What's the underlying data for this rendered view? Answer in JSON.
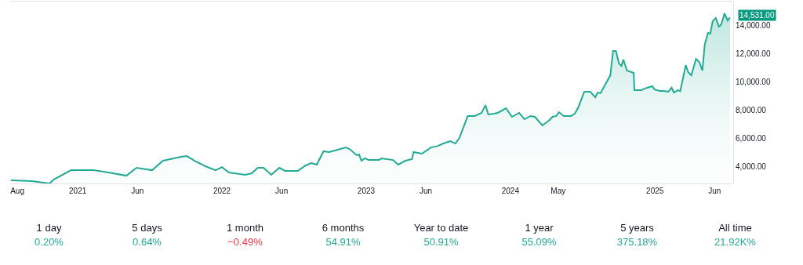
{
  "chart_data": [
    {
      "type": "area",
      "color": "#22ab94",
      "x": [
        "2020-07-16",
        "2020-09-07",
        "2020-10-22",
        "2020-11-01",
        "2020-12-15",
        "2021-02-10",
        "2021-03-20",
        "2021-05-04",
        "2021-05-30",
        "2021-07-08",
        "2021-08-05",
        "2021-09-19",
        "2021-10-04",
        "2021-10-24",
        "2021-11-20",
        "2021-12-16",
        "2022-01-01",
        "2022-01-19",
        "2022-03-01",
        "2022-03-17",
        "2022-04-02",
        "2022-04-16",
        "2022-05-06",
        "2022-05-26",
        "2022-06-10",
        "2022-07-12",
        "2022-08-01",
        "2022-08-15",
        "2022-08-29",
        "2022-09-15",
        "2022-09-29",
        "2022-10-21",
        "2022-11-10",
        "2022-11-20",
        "2022-12-08",
        "2022-12-14",
        "2022-12-20",
        "2022-12-29",
        "2023-01-07",
        "2023-02-03",
        "2023-02-09",
        "2023-03-10",
        "2023-03-23",
        "2023-04-10",
        "2023-04-27",
        "2023-05-01",
        "2023-05-22",
        "2023-06-14",
        "2023-07-02",
        "2023-07-15",
        "2023-08-02",
        "2023-08-15",
        "2023-08-25",
        "2023-09-15",
        "2023-10-03",
        "2023-10-20",
        "2023-10-30",
        "2023-11-06",
        "2023-11-20",
        "2023-11-30",
        "2023-12-21",
        "2024-01-05",
        "2024-01-23",
        "2024-02-06",
        "2024-02-21",
        "2024-03-03",
        "2024-03-22",
        "2024-04-07",
        "2024-04-17",
        "2024-04-26",
        "2024-05-03",
        "2024-05-15",
        "2024-06-02",
        "2024-06-12",
        "2024-06-21",
        "2024-07-06",
        "2024-07-21",
        "2024-08-03",
        "2024-08-09",
        "2024-08-16",
        "2024-09-10",
        "2024-09-17",
        "2024-09-24",
        "2024-10-02",
        "2024-10-08",
        "2024-10-13",
        "2024-10-22",
        "2024-11-08",
        "2024-11-10",
        "2024-11-27",
        "2024-12-12",
        "2024-12-25",
        "2024-12-31",
        "2025-01-13",
        "2025-01-23",
        "2025-02-04",
        "2025-02-12",
        "2025-02-18",
        "2025-02-28",
        "2025-03-06",
        "2025-03-20",
        "2025-03-26",
        "2025-04-03",
        "2025-04-15",
        "2025-04-23",
        "2025-05-01",
        "2025-05-07",
        "2025-05-15",
        "2025-05-21",
        "2025-05-27",
        "2025-06-04",
        "2025-06-12",
        "2025-06-18",
        "2025-06-26",
        "2025-07-04",
        "2025-07-10"
      ],
      "values": [
        3000,
        2950,
        2780,
        3050,
        3720,
        3720,
        3560,
        3330,
        3890,
        3720,
        4390,
        4670,
        4720,
        4390,
        4000,
        3720,
        3940,
        3560,
        3390,
        3500,
        3890,
        3890,
        3390,
        3890,
        3670,
        3670,
        4060,
        4220,
        4110,
        5060,
        5000,
        5170,
        5330,
        5220,
        4780,
        4830,
        4390,
        4560,
        4440,
        4440,
        4560,
        4440,
        4110,
        4390,
        4500,
        5000,
        4890,
        5330,
        5440,
        5610,
        5780,
        5610,
        6000,
        7560,
        7560,
        7780,
        8330,
        7670,
        7720,
        7780,
        8110,
        7500,
        7780,
        7330,
        7560,
        7500,
        6890,
        7220,
        7500,
        7560,
        7830,
        7560,
        7560,
        7720,
        8170,
        9280,
        9280,
        8890,
        9220,
        9170,
        10440,
        12170,
        12170,
        11280,
        11110,
        11560,
        10780,
        10610,
        9390,
        9390,
        9560,
        9670,
        9440,
        9330,
        9330,
        9280,
        9560,
        9220,
        9390,
        9330,
        11170,
        10670,
        10440,
        11610,
        11390,
        10780,
        12610,
        13440,
        13390,
        14280,
        14500,
        13890,
        14060,
        14830,
        14330,
        14531
      ],
      "xlim": [
        "2020-07-14",
        "2025-07-18"
      ],
      "xticks": [
        {
          "value": "2020-08-01",
          "label": "Aug"
        },
        {
          "value": "2021-01-01",
          "label": "2021"
        },
        {
          "value": "2021-06-01",
          "label": "Jun"
        },
        {
          "value": "2022-01-01",
          "label": "2022"
        },
        {
          "value": "2022-06-01",
          "label": "Jun"
        },
        {
          "value": "2023-01-01",
          "label": "2023"
        },
        {
          "value": "2023-06-01",
          "label": "Jun"
        },
        {
          "value": "2024-01-01",
          "label": "2024"
        },
        {
          "value": "2024-05-01",
          "label": "May"
        },
        {
          "value": "2025-01-01",
          "label": "2025"
        },
        {
          "value": "2025-06-01",
          "label": "Jun"
        }
      ],
      "ylim": [
        2780,
        15667
      ],
      "yticks": [
        {
          "value": 4000,
          "label": "4,000.00"
        },
        {
          "value": 6000,
          "label": "6,000.00"
        },
        {
          "value": 8000,
          "label": "8,000.00"
        },
        {
          "value": 10000,
          "label": "10,000.00"
        },
        {
          "value": 12000,
          "label": "12,000.00"
        },
        {
          "value": 14000,
          "label": "14,000.00"
        }
      ],
      "annotations": [
        {
          "text": "14,531.00",
          "x": "2025-07-10",
          "y": 14531
        }
      ],
      "grid": false,
      "legend": false
    },
    {
      "type": "other",
      "categories": [
        "1 day",
        "5 days",
        "1 month",
        "6 months",
        "Year to date",
        "1 year",
        "5 years",
        "All time"
      ],
      "values": [
        0.2,
        0.64,
        -0.49,
        54.91,
        50.91,
        55.09,
        375.18,
        21920
      ],
      "value_labels": [
        "0.20%",
        "0.64%",
        "−0.49%",
        "54.91%",
        "50.91%",
        "55.09%",
        "375.18%",
        "21.92K%"
      ]
    }
  ]
}
